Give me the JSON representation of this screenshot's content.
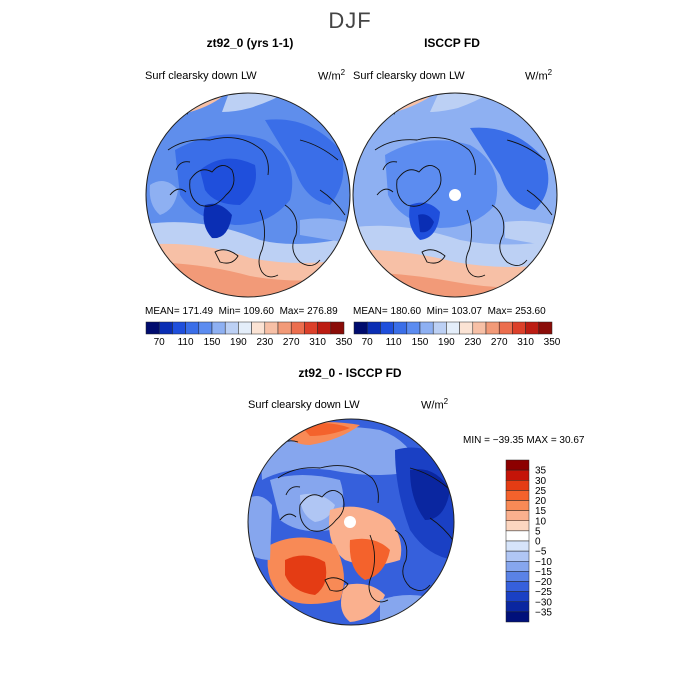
{
  "figure": {
    "title": "DJF"
  },
  "panels": [
    {
      "title": "zt92_0 (yrs 1-1)",
      "variable": "Surf clearsky down LW",
      "units_base": "W/m",
      "units_exp": "2",
      "stats": {
        "mean_label": "MEAN=",
        "mean": "171.49",
        "min_label": "Min=",
        "min": "109.60",
        "max_label": "Max=",
        "max": "276.89"
      }
    },
    {
      "title": "ISCCP FD",
      "variable": "Surf clearsky down LW",
      "units_base": "W/m",
      "units_exp": "2",
      "stats": {
        "mean_label": "MEAN=",
        "mean": "180.60",
        "min_label": "Min=",
        "min": "103.07",
        "max_label": "Max=",
        "max": "253.60"
      }
    }
  ],
  "difference_panel": {
    "title": "zt92_0 - ISCCP FD",
    "variable": "Surf clearsky down LW",
    "units_base": "W/m",
    "units_exp": "2",
    "stats_text": "MIN = −39.35 MAX =  30.67"
  },
  "abs_colorbar": {
    "colors": [
      "#000c6e",
      "#0a2eb4",
      "#1f4fdc",
      "#3a6ee8",
      "#5c8cf0",
      "#8eb0f2",
      "#bcd0f4",
      "#e4eefa",
      "#fbe3d4",
      "#f7c0a6",
      "#f29a78",
      "#ec6e4e",
      "#dc402a",
      "#bc1c12",
      "#8a0c08"
    ],
    "tick_labels": [
      "70",
      "110",
      "150",
      "190",
      "230",
      "270",
      "310",
      "350"
    ]
  },
  "diff_colorbar": {
    "colors": [
      "#8c0000",
      "#c41408",
      "#e43c14",
      "#f4622c",
      "#f88a56",
      "#fab08e",
      "#fcd6c0",
      "#ffffff",
      "#d6e4fa",
      "#b0c6f4",
      "#86a6ee",
      "#5a82e6",
      "#3660dc",
      "#1a40c4",
      "#0a26a0",
      "#00107a"
    ],
    "tick_labels": [
      "35",
      "30",
      "25",
      "20",
      "15",
      "10",
      "5",
      "0",
      "−5",
      "−10",
      "−15",
      "−20",
      "−25",
      "−30",
      "−35"
    ]
  }
}
